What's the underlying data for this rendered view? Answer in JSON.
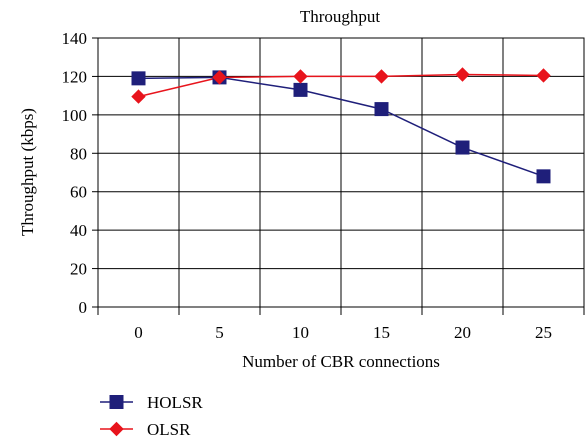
{
  "chart_data": {
    "type": "line",
    "title": "Throughput",
    "xlabel": "Number of CBR connections",
    "ylabel": "Throughput (kbps)",
    "categories": [
      "0",
      "5",
      "10",
      "15",
      "20",
      "25"
    ],
    "ylim": [
      0,
      140
    ],
    "yticks": [
      0,
      20,
      40,
      60,
      80,
      100,
      120,
      140
    ],
    "grid": true,
    "legend_position": "bottom-left",
    "series": [
      {
        "name": "HOLSR",
        "values": [
          119,
          119.5,
          113,
          103,
          83,
          68
        ],
        "color": "#1f1f7a",
        "marker": "square"
      },
      {
        "name": "OLSR",
        "values": [
          109.5,
          119.5,
          120,
          120,
          121,
          120.5
        ],
        "color": "#e8141c",
        "marker": "diamond"
      }
    ]
  }
}
